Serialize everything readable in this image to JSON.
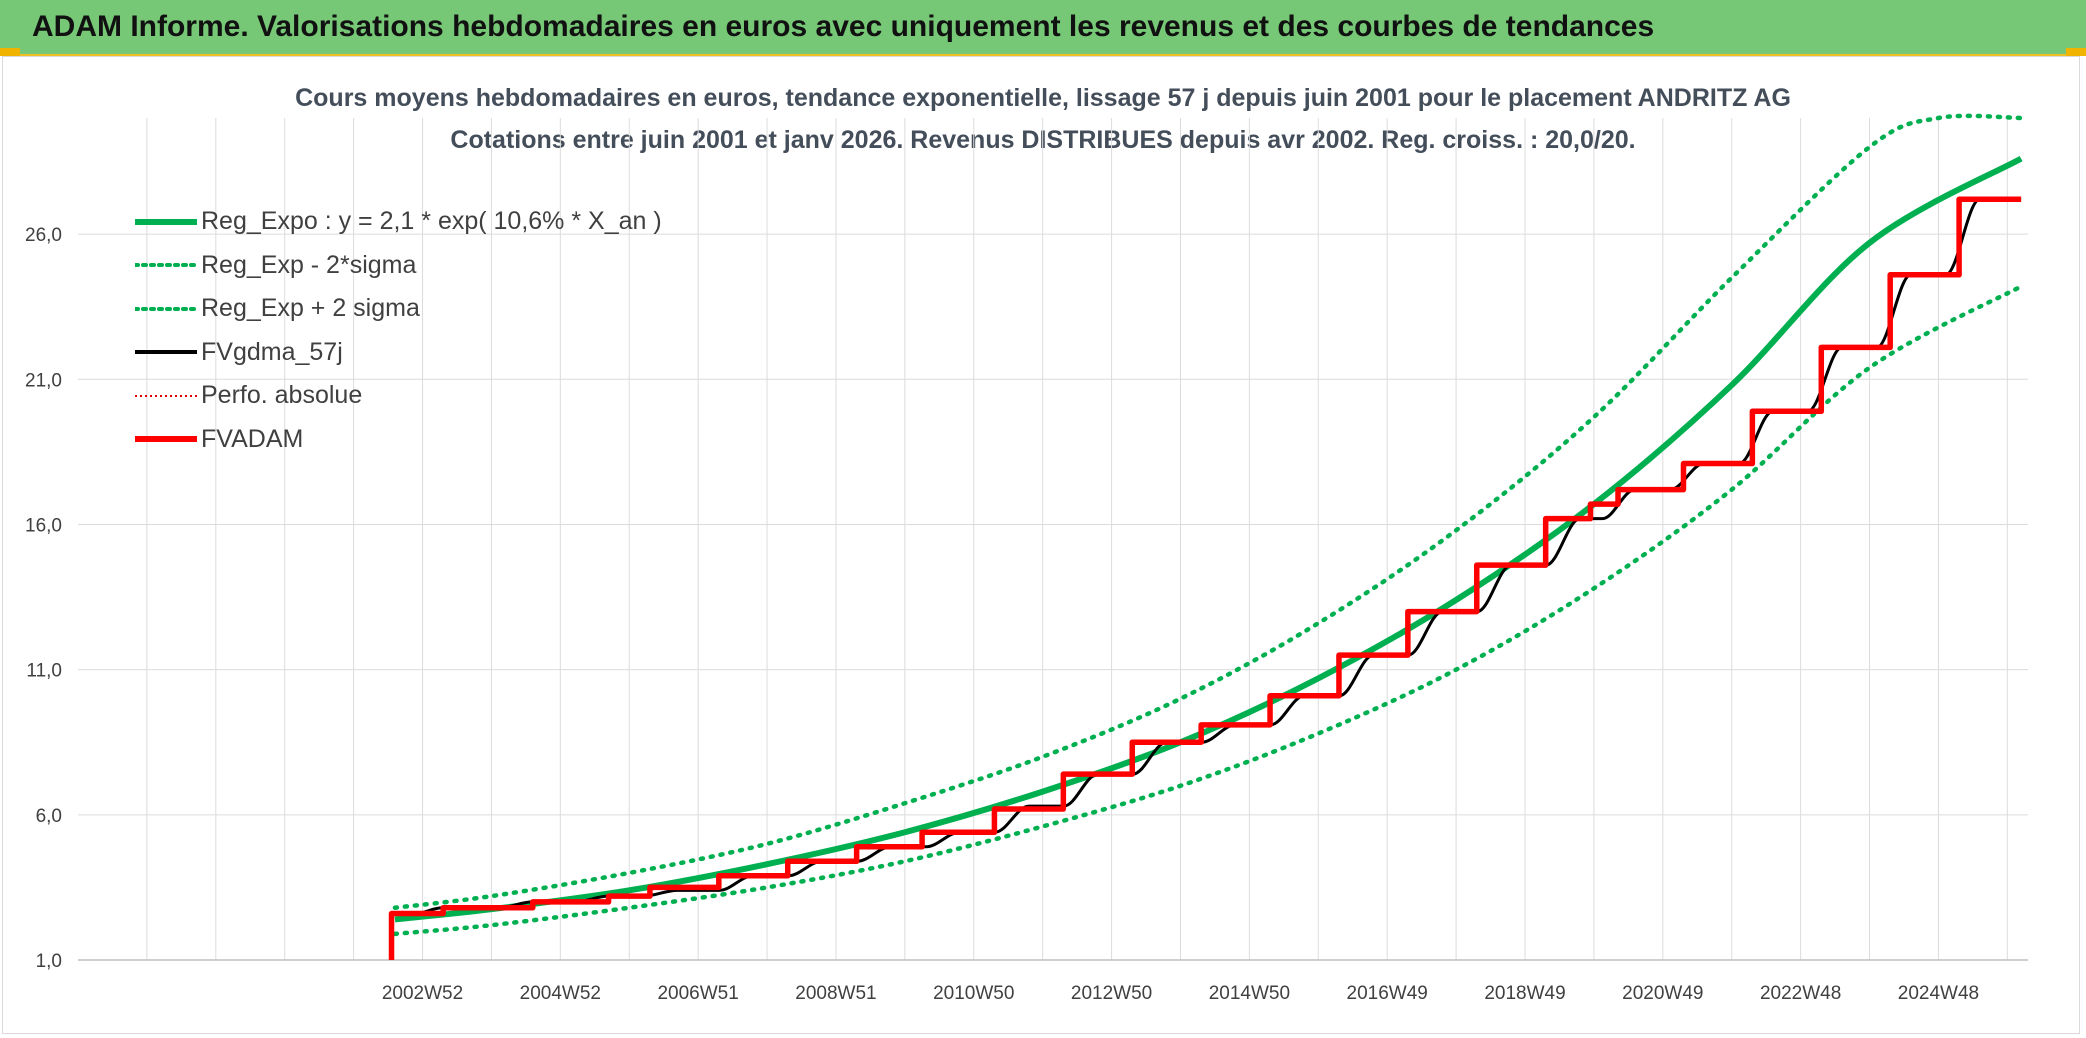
{
  "banner": {
    "title": "ADAM Informe. Valorisations hebdomadaires en euros avec uniquement les revenus et des courbes de tendances"
  },
  "colors": {
    "banner_bg": "#76c776",
    "reg_expo": "#00b050",
    "sigma": "#00b050",
    "fvgdma": "#000000",
    "perfo": "#e00000",
    "fvadam": "#ff0000",
    "grid": "#dcdcdc"
  },
  "chart_data": {
    "type": "line",
    "title": "Cours moyens hebdomadaires en euros, tendance exponentielle, lissage 57 j depuis juin 2001 pour le placement ANDRITZ AG",
    "subtitle": "Cotations entre juin 2001 et janv 2026. Revenus DISTRIBUES depuis avr 2002. Reg. croiss. : 20,0/20.",
    "x_ticks": [
      "2002W52",
      "2004W52",
      "2006W51",
      "2008W51",
      "2010W50",
      "2012W50",
      "2014W50",
      "2016W49",
      "2018W49",
      "2020W49",
      "2022W48",
      "2024W48"
    ],
    "x_tick_years": [
      2003.0,
      2005.0,
      2007.0,
      2009.0,
      2011.0,
      2013.0,
      2015.0,
      2017.0,
      2019.0,
      2021.0,
      2023.0,
      2025.0
    ],
    "xlim": [
      1998.0,
      2026.3
    ],
    "y_ticks": [
      "1,0",
      "6,0",
      "11,0",
      "16,0",
      "21,0",
      "26,0"
    ],
    "ylim": [
      1.0,
      30.0
    ],
    "grid": true,
    "legend_position": "top-left",
    "series": [
      {
        "name": "Reg_Expo : y = 2,1 * exp( 10,6% *  X_an )",
        "style": "solid-thick",
        "x": [
          2002.6,
          2004.0,
          2006.0,
          2008.0,
          2010.0,
          2012.0,
          2014.0,
          2016.0,
          2018.0,
          2020.0,
          2022.0,
          2024.0,
          2026.2
        ],
        "y": [
          2.4,
          2.75,
          3.4,
          4.3,
          5.4,
          6.8,
          8.5,
          10.7,
          13.4,
          16.7,
          20.8,
          25.7,
          28.6
        ]
      },
      {
        "name": "Reg_Exp - 2*sigma",
        "style": "dotted",
        "x": [
          2002.6,
          2004.0,
          2006.0,
          2008.0,
          2010.0,
          2012.0,
          2014.0,
          2016.0,
          2018.0,
          2020.0,
          2022.0,
          2024.0,
          2026.2
        ],
        "y": [
          1.9,
          2.2,
          2.8,
          3.5,
          4.4,
          5.6,
          7.0,
          8.8,
          11.0,
          13.8,
          17.2,
          21.4,
          24.2
        ]
      },
      {
        "name": "Reg_Exp + 2 sigma",
        "style": "dotted",
        "x": [
          2002.6,
          2004.0,
          2006.0,
          2008.0,
          2010.0,
          2012.0,
          2014.0,
          2016.0,
          2018.0,
          2020.0,
          2022.0,
          2024.0,
          2025.0,
          2026.2
        ],
        "y": [
          2.8,
          3.2,
          4.0,
          5.0,
          6.4,
          8.0,
          10.0,
          12.6,
          15.8,
          19.7,
          24.5,
          29.0,
          30.0,
          30.0
        ]
      },
      {
        "name": "FVgdma_57j",
        "style": "solid",
        "x": [
          2002.6,
          2003.3,
          2004.6,
          2005.7,
          2006.7,
          2007.8,
          2008.8,
          2009.8,
          2010.8,
          2011.8,
          2012.8,
          2013.8,
          2014.8,
          2015.8,
          2016.8,
          2017.8,
          2018.8,
          2019.8,
          2020.6,
          2021.6,
          2022.6,
          2023.6,
          2024.6,
          2025.6,
          2026.2
        ],
        "y": [
          2.6,
          2.8,
          3.0,
          3.2,
          3.4,
          3.9,
          4.4,
          4.9,
          5.4,
          6.3,
          7.4,
          8.5,
          9.1,
          10.1,
          11.5,
          13.0,
          14.6,
          16.2,
          17.2,
          18.1,
          19.9,
          22.1,
          24.6,
          27.2,
          27.2
        ]
      },
      {
        "name": "Perfo. absolue",
        "style": "dotted-thin",
        "x": [],
        "y": []
      },
      {
        "name": "FVADAM",
        "style": "step-thick",
        "x": [
          2002.55,
          2002.56,
          2003.3,
          2004.6,
          2005.7,
          2006.3,
          2007.3,
          2008.3,
          2009.3,
          2010.25,
          2011.3,
          2012.3,
          2013.3,
          2014.3,
          2015.3,
          2016.3,
          2017.3,
          2018.3,
          2019.3,
          2019.95,
          2020.35,
          2021.3,
          2022.3,
          2023.3,
          2024.3,
          2025.3,
          2026.2
        ],
        "y": [
          1.0,
          2.6,
          2.8,
          3.0,
          3.2,
          3.5,
          3.9,
          4.4,
          4.9,
          5.4,
          6.2,
          7.4,
          8.5,
          9.1,
          10.1,
          11.5,
          13.0,
          14.6,
          16.2,
          16.7,
          17.2,
          18.1,
          19.9,
          22.1,
          24.6,
          27.2,
          27.2
        ]
      }
    ]
  }
}
